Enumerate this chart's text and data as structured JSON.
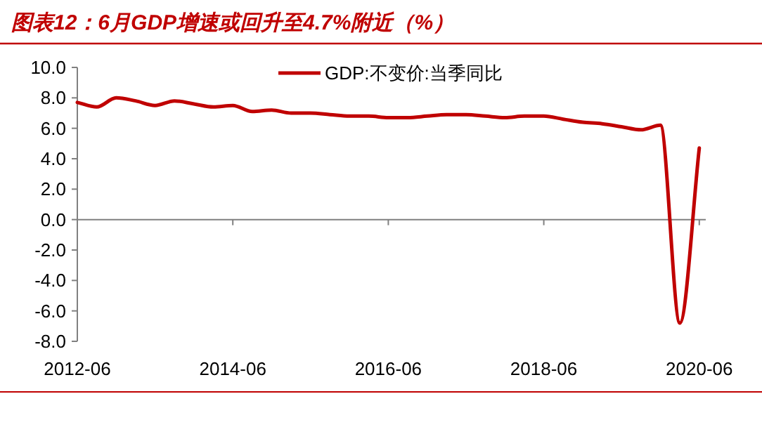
{
  "chart_data": {
    "type": "line",
    "title": "图表12：6月GDP增速或回升至4.7%附近（%）",
    "x": [
      "2012-06",
      "2012-09",
      "2012-12",
      "2013-03",
      "2013-06",
      "2013-09",
      "2013-12",
      "2014-03",
      "2014-06",
      "2014-09",
      "2014-12",
      "2015-03",
      "2015-06",
      "2015-09",
      "2015-12",
      "2016-03",
      "2016-06",
      "2016-09",
      "2016-12",
      "2017-03",
      "2017-06",
      "2017-09",
      "2017-12",
      "2018-03",
      "2018-06",
      "2018-09",
      "2018-12",
      "2019-03",
      "2019-06",
      "2019-09",
      "2019-12",
      "2020-03",
      "2020-06"
    ],
    "series": [
      {
        "name": "GDP:不变价:当季同比",
        "color": "#c00000",
        "values": [
          7.7,
          7.4,
          8.0,
          7.8,
          7.5,
          7.8,
          7.6,
          7.4,
          7.5,
          7.1,
          7.2,
          7.0,
          7.0,
          6.9,
          6.8,
          6.8,
          6.7,
          6.7,
          6.8,
          6.9,
          6.9,
          6.8,
          6.7,
          6.8,
          6.8,
          6.6,
          6.4,
          6.3,
          6.1,
          5.9,
          6.2,
          -6.8,
          4.7
        ]
      }
    ],
    "xlim": [
      "2012-06",
      "2020-07"
    ],
    "xticks": [
      "2012-06",
      "2014-06",
      "2016-06",
      "2018-06",
      "2020-06"
    ],
    "ylim": [
      -8,
      10
    ],
    "yticks": [
      {
        "value": -8,
        "label": "-8.0"
      },
      {
        "value": -6,
        "label": "-6.0"
      },
      {
        "value": -4,
        "label": "-4.0"
      },
      {
        "value": -2,
        "label": "-2.0"
      },
      {
        "value": 0,
        "label": "0.0"
      },
      {
        "value": 2,
        "label": "2.0"
      },
      {
        "value": 4,
        "label": "4.0"
      },
      {
        "value": 6,
        "label": "6.0"
      },
      {
        "value": 8,
        "label": "8.0"
      },
      {
        "value": 10,
        "label": "10.0"
      }
    ],
    "legend": "top",
    "marker": "none",
    "line_style": "solid"
  }
}
